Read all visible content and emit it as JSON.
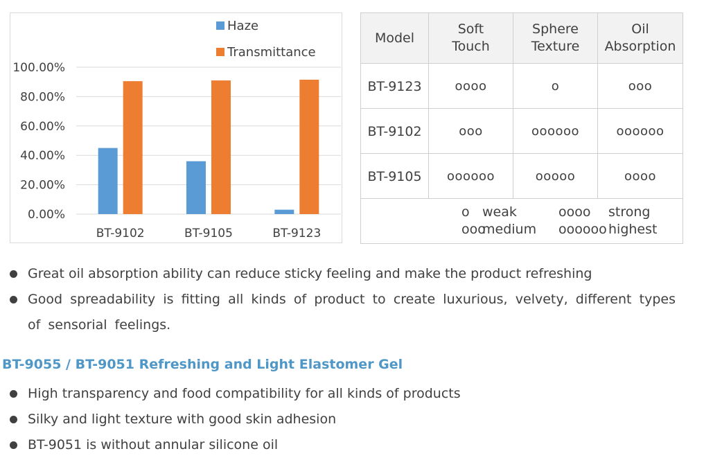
{
  "chart_data": {
    "type": "bar",
    "categories": [
      "BT-9102",
      "BT-9105",
      "BT-9123"
    ],
    "series": [
      {
        "name": "Haze",
        "values": [
          45.0,
          36.0,
          3.0
        ],
        "color": "#5b9bd5"
      },
      {
        "name": "Transmittance",
        "values": [
          90.5,
          91.0,
          91.5
        ],
        "color": "#ed7d31"
      }
    ],
    "ylim": [
      0,
      100
    ],
    "yticks": [
      "0.00%",
      "20.00%",
      "40.00%",
      "60.00%",
      "80.00%",
      "100.00%"
    ],
    "grid": true,
    "legend_position": "top"
  },
  "table": {
    "headers": {
      "model": "Model",
      "soft_touch": [
        "Soft",
        "Touch"
      ],
      "sphere_texture": [
        "Sphere",
        "Texture"
      ],
      "oil_absorption": [
        "Oil",
        "Absorption"
      ]
    },
    "rows": [
      {
        "model": "BT-9123",
        "soft_touch": "oooo",
        "sphere_texture": "o",
        "oil_absorption": "ooo"
      },
      {
        "model": "BT-9102",
        "soft_touch": "ooo",
        "sphere_texture": "oooooo",
        "oil_absorption": "oooooo"
      },
      {
        "model": "BT-9105",
        "soft_touch": "oooooo",
        "sphere_texture": "ooooo",
        "oil_absorption": "oooo"
      }
    ],
    "legend": {
      "sym1": "o",
      "lbl1": "weak",
      "sym2": "oooo",
      "lbl2": "strong",
      "sym3": "ooo",
      "lbl3": "medium",
      "sym4": "oooooo",
      "lbl4": "highest"
    }
  },
  "bullets_top": [
    "Great oil absorption ability can reduce sticky feeling and make the product refreshing",
    "Good spreadability is fitting all kinds of product to create luxurious, velvety, different types of sensorial feelings."
  ],
  "section_heading": "BT-9055 / BT-9051 Refreshing and Light Elastomer Gel",
  "bullets_bottom": [
    "High transparency and food compatibility for all kinds of products",
    "Silky and light texture with good skin adhesion",
    "BT-9051 is without annular silicone oil"
  ],
  "colors": {
    "heading": "#4f97c6",
    "text": "#404040",
    "header_bg": "#f2f2f2",
    "border": "#cfcfcf"
  }
}
